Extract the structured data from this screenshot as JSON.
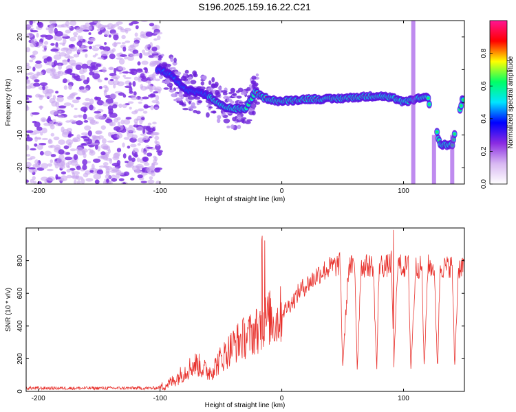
{
  "figure": {
    "title": "S196.2025.159.16.22.C21"
  },
  "chart_data": [
    {
      "type": "heatmap",
      "xlabel": "Height of straight line (km)",
      "ylabel": "Frequency (Hz)",
      "xlim": [
        -210,
        150
      ],
      "ylim": [
        -25,
        25
      ],
      "xticks": [
        -200,
        -100,
        0,
        100
      ],
      "yticks": [
        -20,
        -10,
        0,
        10,
        20
      ],
      "grid": false,
      "colorbar": {
        "label": "Normalized spectral amplitude",
        "range": [
          0,
          1
        ],
        "ticks": [
          "0.0",
          "0.2",
          "0.4",
          "0.6",
          "0.8"
        ],
        "colors": [
          "#ffffff",
          "#d8b8f2",
          "#8a2be2",
          "#0000ff",
          "#00e5ff",
          "#00ff66",
          "#ffff00",
          "#ff0000",
          "#ff1493"
        ]
      },
      "ridge": [
        {
          "x": -100,
          "y": 10
        },
        {
          "x": -90,
          "y": 8
        },
        {
          "x": -80,
          "y": 4
        },
        {
          "x": -70,
          "y": 3
        },
        {
          "x": -60,
          "y": 2
        },
        {
          "x": -50,
          "y": -1
        },
        {
          "x": -40,
          "y": -2
        },
        {
          "x": -30,
          "y": -2
        },
        {
          "x": -22,
          "y": 3
        },
        {
          "x": -15,
          "y": 1.5
        },
        {
          "x": -5,
          "y": 0.5
        },
        {
          "x": 0,
          "y": 0.3
        },
        {
          "x": 20,
          "y": 1
        },
        {
          "x": 40,
          "y": 1
        },
        {
          "x": 60,
          "y": 1.5
        },
        {
          "x": 80,
          "y": 2
        },
        {
          "x": 95,
          "y": 1
        },
        {
          "x": 100,
          "y": 0
        },
        {
          "x": 110,
          "y": 1
        },
        {
          "x": 120,
          "y": 1.5
        },
        {
          "x": 130,
          "y": -13
        },
        {
          "x": 140,
          "y": -13
        },
        {
          "x": 148,
          "y": 0.5
        }
      ]
    },
    {
      "type": "line",
      "xlabel": "Height of straight line (km)",
      "ylabel": "SNR (10 * v/v)",
      "xlim": [
        -210,
        150
      ],
      "ylim": [
        0,
        1000
      ],
      "xticks": [
        -200,
        -100,
        0,
        100
      ],
      "yticks": [
        0,
        200,
        400,
        600,
        800
      ],
      "grid": false,
      "series": [
        {
          "color": "#e8312c",
          "x": [
            -210,
            -180,
            -150,
            -120,
            -105,
            -100,
            -95,
            -90,
            -85,
            -80,
            -75,
            -70,
            -65,
            -60,
            -55,
            -50,
            -45,
            -40,
            -35,
            -30,
            -25,
            -20,
            -15,
            -10,
            -5,
            0,
            5,
            10,
            15,
            20,
            25,
            30,
            35,
            40,
            45,
            48,
            50,
            55,
            60,
            62,
            65,
            70,
            75,
            78,
            80,
            85,
            90,
            92,
            95,
            100,
            104,
            106,
            110,
            115,
            117,
            120,
            125,
            128,
            130,
            135,
            140,
            142,
            145,
            150
          ],
          "y": [
            20,
            20,
            20,
            20,
            20,
            25,
            40,
            60,
            90,
            120,
            150,
            170,
            140,
            120,
            150,
            200,
            240,
            280,
            310,
            330,
            350,
            380,
            420,
            450,
            420,
            480,
            520,
            560,
            620,
            650,
            680,
            720,
            740,
            760,
            770,
            780,
            150,
            770,
            760,
            130,
            760,
            770,
            770,
            130,
            780,
            760,
            790,
            140,
            780,
            760,
            770,
            130,
            760,
            760,
            130,
            770,
            760,
            140,
            760,
            760,
            770,
            140,
            750,
            780
          ]
        }
      ]
    }
  ]
}
